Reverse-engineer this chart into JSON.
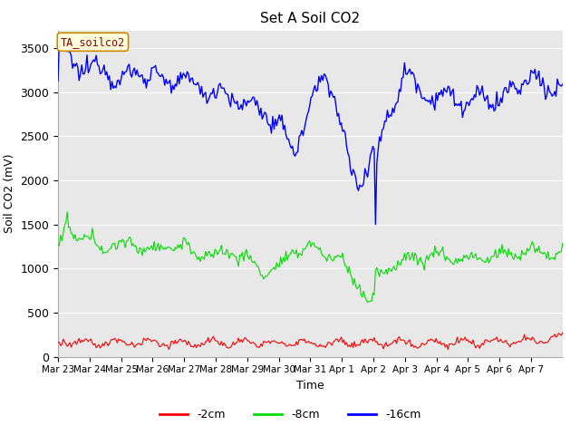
{
  "title": "Set A Soil CO2",
  "ylabel": "Soil CO2 (mV)",
  "xlabel": "Time",
  "annotation": "TA_soilco2",
  "bg_color": "#e8e8e8",
  "grid_color": "white",
  "line_colors": {
    "2cm": "#ff0000",
    "8cm": "#00dd00",
    "16cm": "#0000ff"
  },
  "legend_labels": [
    "-2cm",
    "-8cm",
    "-16cm"
  ],
  "xtick_labels": [
    "Mar 23",
    "Mar 24",
    "Mar 25",
    "Mar 26",
    "Mar 27",
    "Mar 28",
    "Mar 29",
    "Mar 30",
    "Mar 31",
    "Apr 1",
    "Apr 2",
    "Apr 3",
    "Apr 4",
    "Apr 5",
    "Apr 6",
    "Apr 7"
  ],
  "ylim": [
    0,
    3700
  ],
  "yticks": [
    0,
    500,
    1000,
    1500,
    2000,
    2500,
    3000,
    3500
  ],
  "figsize": [
    6.4,
    4.8
  ],
  "dpi": 100
}
